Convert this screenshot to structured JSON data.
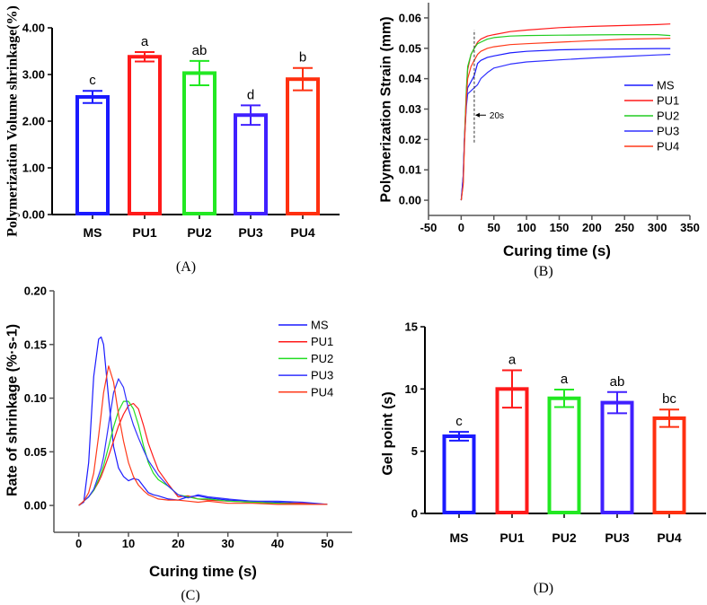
{
  "chart_data": [
    {
      "panel": "A",
      "type": "bar",
      "caption": "(A)",
      "ylabel": "Polymerization Volume shrinkage(%)",
      "xlabel": "",
      "categories": [
        "MS",
        "PU1",
        "PU2",
        "PU3",
        "PU4"
      ],
      "values": [
        2.52,
        3.38,
        3.03,
        2.13,
        2.9
      ],
      "errors": [
        0.13,
        0.1,
        0.26,
        0.21,
        0.24
      ],
      "letters": [
        "c",
        "a",
        "ab",
        "d",
        "b"
      ],
      "colors": [
        "#1a1aff",
        "#ff1a1a",
        "#22e822",
        "#4020ff",
        "#ff3010"
      ],
      "ylim": [
        0,
        4
      ],
      "yticks": [
        0,
        1,
        2,
        3,
        4
      ],
      "ytick_labels": [
        "0.00",
        "1.00",
        "2.00",
        "3.00",
        "4.00"
      ]
    },
    {
      "panel": "B",
      "type": "line",
      "caption": "(B)",
      "ylabel": "Polymerization Strain (mm)",
      "xlabel": "Curing time (s)",
      "xlim": [
        -50,
        350
      ],
      "ylim": [
        -0.005,
        0.065
      ],
      "xticks": [
        -50,
        0,
        50,
        100,
        150,
        200,
        250,
        300,
        350
      ],
      "xtick_labels": [
        "-50",
        "0",
        "50",
        "100",
        "150",
        "200",
        "250",
        "300",
        "350"
      ],
      "yticks": [
        0,
        0.01,
        0.02,
        0.03,
        0.04,
        0.05,
        0.06
      ],
      "ytick_labels": [
        "0.00",
        "0.01",
        "0.02",
        "0.03",
        "0.04",
        "0.05",
        "0.06"
      ],
      "legend_position": "right",
      "annotation": {
        "text": "20s",
        "x": 20,
        "y": 0.028,
        "line_from": 0.019,
        "line_to": 0.056
      },
      "x": [
        0,
        3,
        5,
        8,
        10,
        15,
        20,
        25,
        30,
        40,
        50,
        75,
        100,
        150,
        200,
        250,
        300,
        320
      ],
      "series": [
        {
          "name": "MS",
          "color": "#1a1aff",
          "values": [
            0,
            0.008,
            0.02,
            0.033,
            0.037,
            0.039,
            0.041,
            0.045,
            0.046,
            0.047,
            0.0475,
            0.0485,
            0.049,
            0.0495,
            0.0497,
            0.0498,
            0.0499,
            0.0499
          ]
        },
        {
          "name": "PU1",
          "color": "#ff1a1a",
          "values": [
            0,
            0.006,
            0.02,
            0.036,
            0.043,
            0.048,
            0.05,
            0.052,
            0.053,
            0.054,
            0.0545,
            0.0555,
            0.056,
            0.0568,
            0.0572,
            0.0575,
            0.0578,
            0.058
          ]
        },
        {
          "name": "PU2",
          "color": "#22cc22",
          "values": [
            0,
            0.006,
            0.02,
            0.037,
            0.044,
            0.048,
            0.05,
            0.0515,
            0.052,
            0.053,
            0.0535,
            0.054,
            0.0542,
            0.0543,
            0.0544,
            0.0545,
            0.0545,
            0.0542
          ]
        },
        {
          "name": "PU3",
          "color": "#3030ff",
          "values": [
            0,
            0.008,
            0.02,
            0.031,
            0.035,
            0.036,
            0.037,
            0.038,
            0.04,
            0.042,
            0.0435,
            0.0448,
            0.0455,
            0.0462,
            0.0468,
            0.0473,
            0.0478,
            0.048
          ]
        },
        {
          "name": "PU4",
          "color": "#ff3a1a",
          "values": [
            0,
            0.005,
            0.018,
            0.034,
            0.04,
            0.044,
            0.046,
            0.048,
            0.049,
            0.05,
            0.0505,
            0.0512,
            0.0515,
            0.052,
            0.0525,
            0.053,
            0.0532,
            0.0533
          ]
        }
      ]
    },
    {
      "panel": "C",
      "type": "line",
      "caption": "(C)",
      "ylabel": "Rate of shrinkage (%·s-1)",
      "xlabel": "Curing time (s)",
      "xlim": [
        -5,
        55
      ],
      "ylim": [
        -0.025,
        0.2
      ],
      "xticks": [
        0,
        10,
        20,
        30,
        40,
        50
      ],
      "xtick_labels": [
        "0",
        "10",
        "20",
        "30",
        "40",
        "50"
      ],
      "yticks": [
        0,
        0.05,
        0.1,
        0.15,
        0.2
      ],
      "ytick_labels": [
        "0.00",
        "0.05",
        "0.10",
        "0.15",
        "0.20"
      ],
      "legend_position": "top-right",
      "x": [
        0,
        1,
        2,
        3,
        4,
        4.5,
        5,
        6,
        7,
        8,
        9,
        10,
        11,
        12,
        13,
        14,
        15,
        16,
        18,
        20,
        22,
        24,
        26,
        30,
        35,
        40,
        45,
        50
      ],
      "series": [
        {
          "name": "MS",
          "color": "#1a1aff",
          "values": [
            0,
            0.003,
            0.04,
            0.12,
            0.155,
            0.157,
            0.15,
            0.1,
            0.055,
            0.035,
            0.027,
            0.023,
            0.025,
            0.024,
            0.018,
            0.012,
            0.01,
            0.009,
            0.006,
            0.005,
            0.008,
            0.009,
            0.007,
            0.005,
            0.004,
            0.003,
            0.002,
            0.001
          ]
        },
        {
          "name": "PU1",
          "color": "#ff1a1a",
          "values": [
            0,
            0.004,
            0.008,
            0.014,
            0.022,
            0.027,
            0.033,
            0.046,
            0.06,
            0.074,
            0.085,
            0.093,
            0.095,
            0.09,
            0.075,
            0.058,
            0.045,
            0.033,
            0.02,
            0.008,
            0.009,
            0.006,
            0.005,
            0.004,
            0.003,
            0.002,
            0.002,
            0.001
          ]
        },
        {
          "name": "PU2",
          "color": "#22dd22",
          "values": [
            0,
            0.004,
            0.008,
            0.014,
            0.024,
            0.03,
            0.037,
            0.055,
            0.073,
            0.088,
            0.097,
            0.097,
            0.09,
            0.075,
            0.056,
            0.04,
            0.03,
            0.024,
            0.018,
            0.01,
            0.008,
            0.006,
            0.006,
            0.004,
            0.003,
            0.002,
            0.001,
            0.001
          ]
        },
        {
          "name": "PU3",
          "color": "#3030ff",
          "values": [
            0,
            0.004,
            0.008,
            0.015,
            0.028,
            0.035,
            0.045,
            0.075,
            0.105,
            0.118,
            0.11,
            0.09,
            0.075,
            0.063,
            0.052,
            0.042,
            0.035,
            0.028,
            0.018,
            0.01,
            0.007,
            0.01,
            0.008,
            0.006,
            0.004,
            0.004,
            0.003,
            0.001
          ]
        },
        {
          "name": "PU4",
          "color": "#ff3a1a",
          "values": [
            0,
            0.004,
            0.012,
            0.03,
            0.065,
            0.085,
            0.105,
            0.13,
            0.115,
            0.085,
            0.06,
            0.04,
            0.027,
            0.019,
            0.014,
            0.01,
            0.008,
            0.006,
            0.005,
            0.005,
            0.004,
            0.003,
            0.004,
            0.002,
            0.002,
            0.001,
            0.001,
            0.001
          ]
        }
      ]
    },
    {
      "panel": "D",
      "type": "bar",
      "caption": "(D)",
      "ylabel": "Gel point (s)",
      "xlabel": "",
      "categories": [
        "MS",
        "PU1",
        "PU2",
        "PU3",
        "PU4"
      ],
      "values": [
        6.2,
        10.0,
        9.25,
        8.9,
        7.65
      ],
      "errors": [
        0.35,
        1.5,
        0.7,
        0.85,
        0.7
      ],
      "letters": [
        "c",
        "a",
        "a",
        "ab",
        "bc"
      ],
      "colors": [
        "#1a1aff",
        "#ff1a1a",
        "#22e822",
        "#4020ff",
        "#ff3010"
      ],
      "ylim": [
        0,
        15
      ],
      "yticks": [
        0,
        5,
        10,
        15
      ],
      "ytick_labels": [
        "0",
        "5",
        "10",
        "15"
      ]
    }
  ]
}
